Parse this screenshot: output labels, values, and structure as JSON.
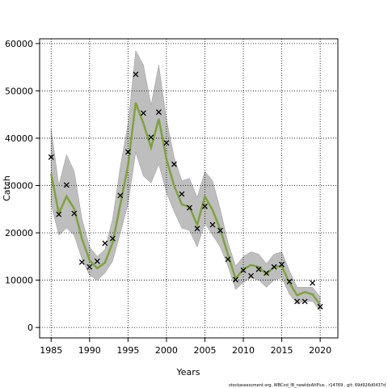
{
  "chart_data": {
    "type": "line",
    "xlabel": "Years",
    "ylabel": "Catch",
    "footnote": "stockassessment.org, WBCod_IB_newIdxAltPlus , r14769 , git: 69d926d0437d",
    "x": [
      1985,
      1986,
      1987,
      1988,
      1989,
      1990,
      1991,
      1992,
      1993,
      1994,
      1995,
      1996,
      1997,
      1998,
      1999,
      2000,
      2001,
      2002,
      2003,
      2004,
      2005,
      2006,
      2007,
      2008,
      2009,
      2010,
      2011,
      2012,
      2013,
      2014,
      2015,
      2016,
      2017,
      2018,
      2019,
      2020
    ],
    "band": {
      "color": "#bebebe",
      "upper": [
        42000,
        30000,
        36500,
        33000,
        23000,
        17000,
        15000,
        16500,
        23000,
        34000,
        43000,
        58500,
        55500,
        47000,
        55500,
        44000,
        36000,
        31000,
        31500,
        27500,
        33000,
        31000,
        25000,
        18000,
        13000,
        15000,
        16000,
        15500,
        13500,
        15500,
        16000,
        12000,
        8500,
        8500,
        8500,
        6500
      ],
      "lower": [
        26000,
        19500,
        21000,
        19500,
        14500,
        11000,
        10000,
        11500,
        14000,
        20000,
        26000,
        37000,
        32000,
        30500,
        34500,
        28500,
        24500,
        21000,
        20500,
        17000,
        22000,
        19500,
        17000,
        13000,
        8000,
        9500,
        10500,
        10000,
        8500,
        10000,
        10500,
        7000,
        5000,
        5500,
        5500,
        3500
      ]
    },
    "series": [
      {
        "color": "#7da33a",
        "values": [
          32500,
          24100,
          27700,
          25100,
          18800,
          14200,
          12500,
          13700,
          17900,
          26000,
          34200,
          47500,
          43100,
          38000,
          44100,
          35600,
          29900,
          26000,
          25500,
          21700,
          27700,
          24800,
          20700,
          15400,
          10300,
          12300,
          13200,
          12800,
          11300,
          12800,
          13000,
          9400,
          6800,
          7500,
          7000,
          4800
        ]
      }
    ],
    "observed": [
      36000,
      23900,
      30100,
      24100,
      13800,
      12800,
      14000,
      17800,
      18800,
      27900,
      37100,
      53500,
      45300,
      40200,
      45500,
      39000,
      34500,
      28200,
      25300,
      20900,
      25600,
      21700,
      20500,
      14400,
      10100,
      12100,
      10900,
      12300,
      11500,
      12800,
      13300,
      9700,
      5500,
      5500,
      9400,
      4400
    ],
    "xlim": [
      1983.5,
      2022.3
    ],
    "ylim": [
      -2200,
      61000
    ],
    "xticks": [
      1985,
      1990,
      1995,
      2000,
      2005,
      2010,
      2015,
      2020
    ],
    "yticks": [
      0,
      10000,
      20000,
      30000,
      40000,
      50000,
      60000
    ],
    "grid": true
  }
}
